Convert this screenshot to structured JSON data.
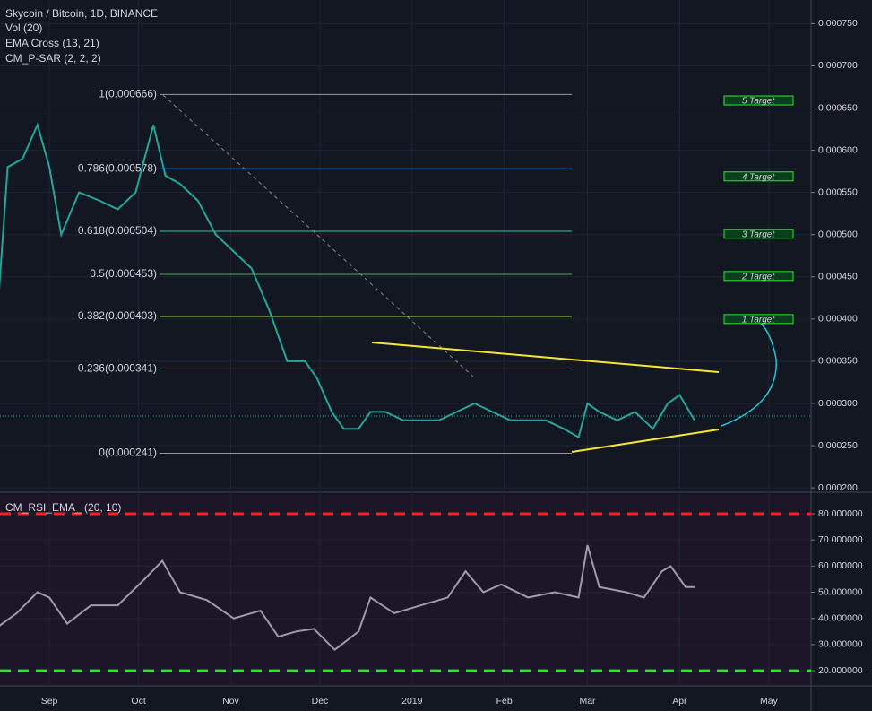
{
  "chart_data": [
    {
      "type": "line",
      "title": "Skycoin / Bitcoin, 1D, BINANCE",
      "indicators": [
        "Vol (20)",
        "EMA Cross (13, 21)",
        "CM_P-SAR (2, 2, 2)"
      ],
      "x": [
        -17,
        -14,
        -9,
        -4,
        0,
        4,
        10,
        17,
        23,
        29,
        35,
        39,
        44,
        50,
        56,
        62,
        68,
        74,
        80,
        86,
        90,
        95,
        99,
        104,
        108,
        113,
        119,
        125,
        131,
        137,
        143,
        149,
        155,
        161,
        167,
        173,
        178,
        181,
        185,
        191,
        197,
        203,
        208,
        212,
        217
      ],
      "series": [
        {
          "name": "Skycoin / Bitcoin",
          "color": "#26a69a",
          "values": [
            0.00043,
            0.00058,
            0.00059,
            0.00063,
            0.00058,
            0.0005,
            0.00055,
            0.00054,
            0.00053,
            0.00055,
            0.00063,
            0.00057,
            0.00056,
            0.00054,
            0.0005,
            0.00048,
            0.00046,
            0.00041,
            0.00035,
            0.00035,
            0.00033,
            0.00029,
            0.00027,
            0.00027,
            0.00029,
            0.00029,
            0.00028,
            0.00028,
            0.00028,
            0.00029,
            0.0003,
            0.00029,
            0.00028,
            0.00028,
            0.00028,
            0.00027,
            0.00026,
            0.0003,
            0.00029,
            0.00028,
            0.00029,
            0.00027,
            0.0003,
            0.00031,
            0.00028
          ]
        }
      ],
      "xlim": [
        -16.6,
        256.2
      ],
      "xticks": [
        {
          "value": 0,
          "label": "Sep"
        },
        {
          "value": 30,
          "label": "Oct"
        },
        {
          "value": 61,
          "label": "Nov"
        },
        {
          "value": 91,
          "label": "Dec"
        },
        {
          "value": 122,
          "label": "2019"
        },
        {
          "value": 153,
          "label": "Feb"
        },
        {
          "value": 181,
          "label": "Mar"
        },
        {
          "value": 212,
          "label": "Apr"
        },
        {
          "value": 242,
          "label": "May"
        }
      ],
      "ylim": [
        0.000198,
        0.000778
      ],
      "yticks": [
        {
          "value": 0.00075,
          "label": "0.000750"
        },
        {
          "value": 0.0007,
          "label": "0.000700"
        },
        {
          "value": 0.00065,
          "label": "0.000650"
        },
        {
          "value": 0.0006,
          "label": "0.000600"
        },
        {
          "value": 0.00055,
          "label": "0.000550"
        },
        {
          "value": 0.0005,
          "label": "0.000500"
        },
        {
          "value": 0.00045,
          "label": "0.000450"
        },
        {
          "value": 0.0004,
          "label": "0.000400"
        },
        {
          "value": 0.00035,
          "label": "0.000350"
        },
        {
          "value": 0.0003,
          "label": "0.000300"
        },
        {
          "value": 0.00025,
          "label": "0.000250"
        },
        {
          "value": 0.0002,
          "label": "0.000200"
        }
      ],
      "grid": true,
      "fib_levels": [
        {
          "label": "1(0.000666)",
          "value": 0.000666,
          "color": "#9598a1"
        },
        {
          "label": "0.786(0.000578)",
          "value": 0.000578,
          "color": "#42a5f5"
        },
        {
          "label": "0.618(0.000504)",
          "value": 0.000504,
          "color": "#26c6a0"
        },
        {
          "label": "0.5(0.000453)",
          "value": 0.000453,
          "color": "#4caf50"
        },
        {
          "label": "0.382(0.000403)",
          "value": 0.000403,
          "color": "#a5d63a"
        },
        {
          "label": "0.236(0.000341)",
          "value": 0.000341,
          "color": "#e53935"
        },
        {
          "label": "0(0.000241)",
          "value": 0.000241,
          "color": "#9598a1"
        }
      ],
      "targets": [
        {
          "label": "5 Target",
          "value": 0.000659
        },
        {
          "label": "4 Target",
          "value": 0.000569
        },
        {
          "label": "3 Target",
          "value": 0.000501
        },
        {
          "label": "2 Target",
          "value": 0.000451
        },
        {
          "label": "1 Target",
          "value": 0.0004
        }
      ]
    },
    {
      "type": "line",
      "title": "CM_RSI_EMA_ (20, 10)",
      "x": [
        -17,
        -11,
        -4,
        0,
        6,
        14,
        23,
        32,
        38,
        44,
        53,
        62,
        71,
        77,
        83,
        89,
        96,
        104,
        108,
        116,
        125,
        134,
        140,
        146,
        152,
        161,
        170,
        178,
        181,
        185,
        194,
        200,
        206,
        209,
        214,
        217
      ],
      "series": [
        {
          "name": "RSI",
          "color": "#a09aae",
          "values": [
            37,
            42,
            50,
            48,
            38,
            45,
            45,
            55,
            62,
            50,
            47,
            40,
            43,
            33,
            35,
            36,
            28,
            35,
            48,
            42,
            45,
            48,
            58,
            50,
            53,
            48,
            50,
            48,
            68,
            52,
            50,
            48,
            58,
            60,
            52,
            52
          ]
        }
      ],
      "xlim": [
        -16.6,
        256.2
      ],
      "ylim": [
        14.2,
        87.2
      ],
      "yticks": [
        {
          "value": 80,
          "label": "80.000000"
        },
        {
          "value": 70,
          "label": "70.000000"
        },
        {
          "value": 60,
          "label": "60.000000"
        },
        {
          "value": 50,
          "label": "50.000000"
        },
        {
          "value": 40,
          "label": "40.000000"
        },
        {
          "value": 30,
          "label": "30.000000"
        },
        {
          "value": 20,
          "label": "20.000000"
        }
      ],
      "upper_band": 80,
      "upper_color": "#ff1f1f",
      "lower_band": 20,
      "lower_color": "#2ee82e"
    }
  ]
}
